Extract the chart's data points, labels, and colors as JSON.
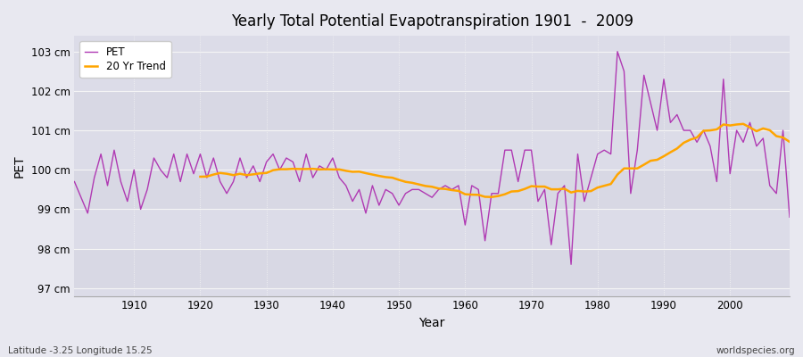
{
  "title": "Yearly Total Potential Evapotranspiration 1901  -  2009",
  "xlabel": "Year",
  "ylabel": "PET",
  "footnote_left": "Latitude -3.25 Longitude 15.25",
  "footnote_right": "worldspecies.org",
  "legend_labels": [
    "PET",
    "20 Yr Trend"
  ],
  "pet_color": "#b03ab3",
  "trend_color": "#ffa500",
  "fig_background_color": "#e8e8f0",
  "plot_background_color": "#dcdce8",
  "grid_color": "#f5f5f5",
  "ylim": [
    96.8,
    103.4
  ],
  "yticks": [
    97,
    98,
    99,
    100,
    101,
    102,
    103
  ],
  "ytick_labels": [
    "97 cm",
    "98 cm",
    "99 cm",
    "100 cm",
    "101 cm",
    "102 cm",
    "103 cm"
  ],
  "xlim": [
    1901,
    2009
  ],
  "xticks": [
    1910,
    1920,
    1930,
    1940,
    1950,
    1960,
    1970,
    1980,
    1990,
    2000
  ],
  "years": [
    1901,
    1902,
    1903,
    1904,
    1905,
    1906,
    1907,
    1908,
    1909,
    1910,
    1911,
    1912,
    1913,
    1914,
    1915,
    1916,
    1917,
    1918,
    1919,
    1920,
    1921,
    1922,
    1923,
    1924,
    1925,
    1926,
    1927,
    1928,
    1929,
    1930,
    1931,
    1932,
    1933,
    1934,
    1935,
    1936,
    1937,
    1938,
    1939,
    1940,
    1941,
    1942,
    1943,
    1944,
    1945,
    1946,
    1947,
    1948,
    1949,
    1950,
    1951,
    1952,
    1953,
    1954,
    1955,
    1956,
    1957,
    1958,
    1959,
    1960,
    1961,
    1962,
    1963,
    1964,
    1965,
    1966,
    1967,
    1968,
    1969,
    1970,
    1971,
    1972,
    1973,
    1974,
    1975,
    1976,
    1977,
    1978,
    1979,
    1980,
    1981,
    1982,
    1983,
    1984,
    1985,
    1986,
    1987,
    1988,
    1989,
    1990,
    1991,
    1992,
    1993,
    1994,
    1995,
    1996,
    1997,
    1998,
    1999,
    2000,
    2001,
    2002,
    2003,
    2004,
    2005,
    2006,
    2007,
    2008,
    2009
  ],
  "pet_values": [
    99.7,
    99.3,
    98.9,
    99.8,
    100.4,
    99.6,
    100.5,
    99.7,
    99.2,
    100.0,
    99.0,
    99.5,
    100.3,
    100.0,
    99.8,
    100.4,
    99.7,
    100.4,
    99.9,
    100.4,
    99.8,
    100.3,
    99.7,
    99.4,
    99.7,
    100.3,
    99.8,
    100.1,
    99.7,
    100.2,
    100.4,
    100.0,
    100.3,
    100.2,
    99.7,
    100.4,
    99.8,
    100.1,
    100.0,
    100.3,
    99.8,
    99.6,
    99.2,
    99.5,
    98.9,
    99.6,
    99.1,
    99.5,
    99.4,
    99.1,
    99.4,
    99.5,
    99.5,
    99.4,
    99.3,
    99.5,
    99.6,
    99.5,
    99.6,
    98.6,
    99.6,
    99.5,
    98.2,
    99.4,
    99.4,
    100.5,
    100.5,
    99.7,
    100.5,
    100.5,
    99.2,
    99.5,
    98.1,
    99.4,
    99.6,
    97.6,
    100.4,
    99.2,
    99.8,
    100.4,
    100.5,
    100.4,
    103.0,
    102.5,
    99.4,
    100.5,
    102.4,
    101.7,
    101.0,
    102.3,
    101.2,
    101.4,
    101.0,
    101.0,
    100.7,
    101.0,
    100.6,
    99.7,
    102.3,
    99.9,
    101.0,
    100.7,
    101.2,
    100.6,
    100.8,
    99.6,
    99.4,
    101.0,
    98.8
  ],
  "trend_window": 20
}
